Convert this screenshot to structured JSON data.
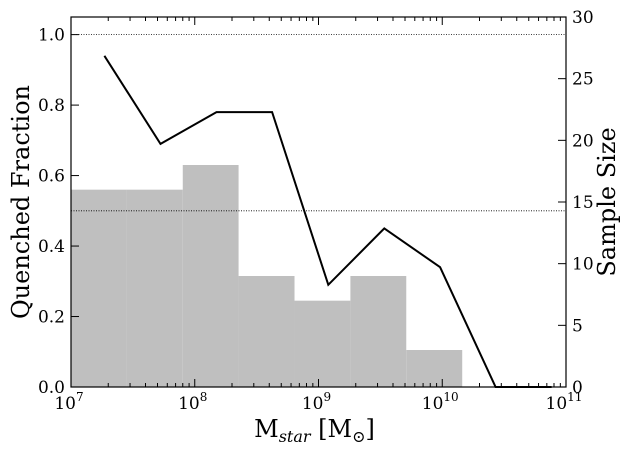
{
  "chart_data": {
    "type": "line",
    "x_scale": "log",
    "xlim": [
      10000000,
      100000000000
    ],
    "ylim_left": [
      0,
      1.05
    ],
    "ylim_right": [
      0,
      30
    ],
    "xlabel": {
      "main": "M",
      "sub": "star",
      "units_open": " [M",
      "units_sym": "⊙",
      "units_close": "]"
    },
    "ylabel_left": "Quenched Fraction",
    "ylabel_right": "Sample Size",
    "reference_lines": [
      1.0,
      0.5
    ],
    "x_ticks": [
      {
        "value": 10000000,
        "base": "10",
        "exp": "7"
      },
      {
        "value": 100000000,
        "base": "10",
        "exp": "8"
      },
      {
        "value": 1000000000,
        "base": "10",
        "exp": "9"
      },
      {
        "value": 10000000000,
        "base": "10",
        "exp": "10"
      },
      {
        "value": 100000000000,
        "base": "10",
        "exp": "11"
      }
    ],
    "y_ticks_left": [
      "0.0",
      "0.2",
      "0.4",
      "0.6",
      "0.8",
      "1.0"
    ],
    "y_ticks_right": [
      "0",
      "5",
      "10",
      "15",
      "20",
      "25",
      "30"
    ],
    "quenched_fraction": {
      "x": [
        18600000,
        52900000,
        150000000,
        422000000,
        1200000000,
        3400000000,
        9600000000,
        27000000000,
        76500000000
      ],
      "y": [
        0.94,
        0.69,
        0.78,
        0.78,
        0.29,
        0.45,
        0.34,
        0.0,
        0.0
      ]
    },
    "sample_size": {
      "bin_edges": [
        10000000,
        28300000,
        80000000,
        226000000,
        640000000,
        1810000000,
        5120000000,
        14500000000
      ],
      "counts": [
        16,
        16,
        18,
        9,
        7,
        9,
        3
      ]
    },
    "colors": {
      "bars": "#bfbfbf",
      "line": "#000000",
      "ref_line": "#000000"
    }
  }
}
